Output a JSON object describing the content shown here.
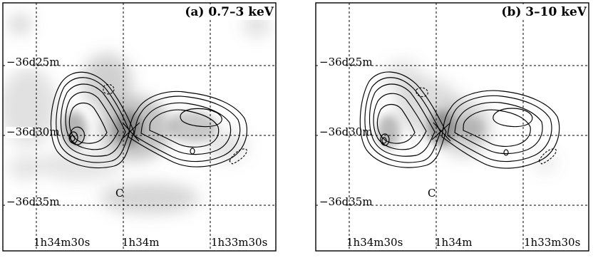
{
  "figure": {
    "panels": [
      {
        "id": "a",
        "title": "(a) 0.7–3 keV",
        "dec_labels": [
          "−36d25m",
          "−36d30m",
          "−36d35m"
        ],
        "ra_labels": [
          "1h34m30s",
          "1h34m",
          "1h33m30s"
        ],
        "marker": "C"
      },
      {
        "id": "b",
        "title": "(b) 3–10 keV",
        "dec_labels": [
          "−36d25m",
          "−36d30m",
          "−36d35m"
        ],
        "ra_labels": [
          "1h34m30s",
          "1h34m",
          "1h33m30s"
        ],
        "marker": "C"
      }
    ]
  }
}
